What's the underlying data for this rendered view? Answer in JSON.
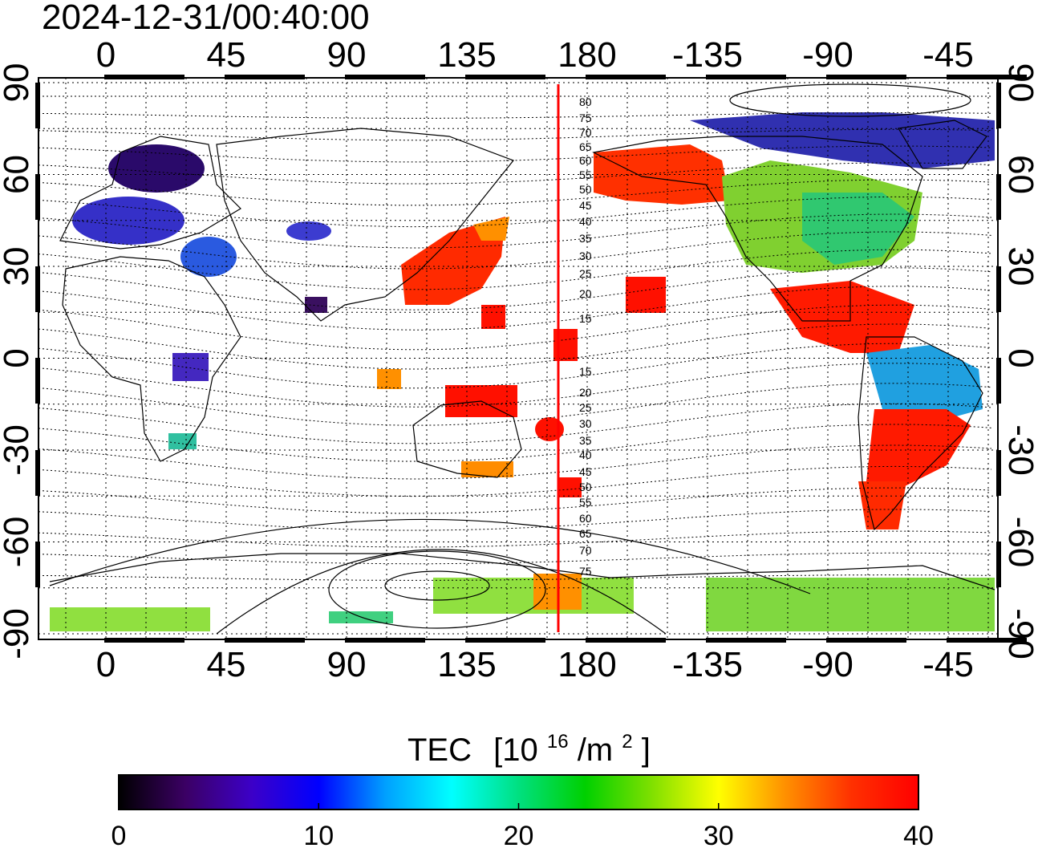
{
  "title": "2024-12-31/00:40:00",
  "map": {
    "top_lon_labels": [
      "0",
      "45",
      "90",
      "135",
      "180",
      "-135",
      "-90",
      "-45"
    ],
    "bottom_lon_labels": [
      "0",
      "45",
      "90",
      "135",
      "180",
      "-135",
      "-90",
      "-45"
    ],
    "left_lat_labels": [
      "90",
      "60",
      "30",
      "0",
      "-30",
      "-60",
      "-90"
    ],
    "right_lat_labels": [
      "90",
      "60",
      "30",
      "0",
      "-30",
      "-60",
      "-90"
    ],
    "meridian_marker_lon": 170,
    "contour_labels": [
      "80",
      "75",
      "70",
      "65",
      "60",
      "55",
      "50",
      "45",
      "40",
      "35",
      "30",
      "25",
      "20",
      "15",
      "15",
      "20",
      "25",
      "30",
      "35",
      "40",
      "45",
      "50",
      "55",
      "60",
      "65",
      "70",
      "75"
    ],
    "colors": {
      "marker_line": "#ff0000",
      "land_outline": "#000000",
      "grid": "#000000"
    }
  },
  "colorbar": {
    "title": "TEC",
    "unit_base": "[10",
    "unit_exp1": "16",
    "unit_mid": "/m",
    "unit_exp2": "2",
    "unit_end": "]",
    "ticks": [
      "0",
      "10",
      "20",
      "30",
      "40"
    ],
    "min": 0,
    "max": 40,
    "stops": [
      "#000000",
      "#3b0064",
      "#3c00c8",
      "#0000ff",
      "#00a0ff",
      "#00ffff",
      "#00e080",
      "#00d000",
      "#80e000",
      "#ffff00",
      "#ff9000",
      "#ff3000",
      "#ff0000"
    ]
  }
}
